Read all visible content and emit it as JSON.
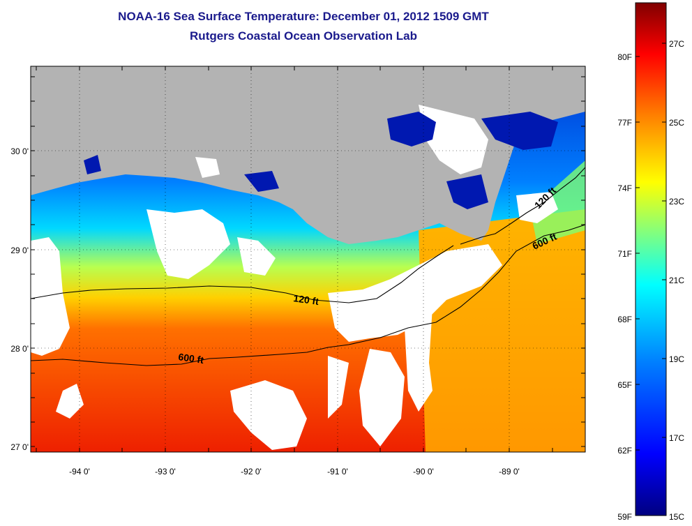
{
  "title": "NOAA-16 Sea Surface Temperature:  December 01, 2012 1509 GMT",
  "subtitle": "Rutgers Coastal Ocean Observation Lab",
  "map": {
    "lon_ticks": [
      "-94 0'",
      "-93 0'",
      "-92 0'",
      "-91 0'",
      "-90 0'",
      "-89 0'"
    ],
    "lat_ticks": [
      "30 0'",
      "29 0'",
      "28 0'",
      "27 0'"
    ],
    "contours": [
      {
        "label": "120 ft"
      },
      {
        "label": "600 ft"
      },
      {
        "label": "120 ft"
      },
      {
        "label": "600 ft"
      }
    ],
    "land_color": "#b3b3b3",
    "cloud_color": "#ffffff"
  },
  "colorbar": {
    "fahrenheit": [
      "80F",
      "77F",
      "74F",
      "71F",
      "68F",
      "65F",
      "62F",
      "59F"
    ],
    "celsius": [
      "27C",
      "25C",
      "23C",
      "21C",
      "19C",
      "17C",
      "15C"
    ],
    "colors": [
      "#800000",
      "#ff0000",
      "#ff8000",
      "#ffff00",
      "#80ff80",
      "#00ffff",
      "#0080ff",
      "#0000ff",
      "#000080"
    ]
  }
}
